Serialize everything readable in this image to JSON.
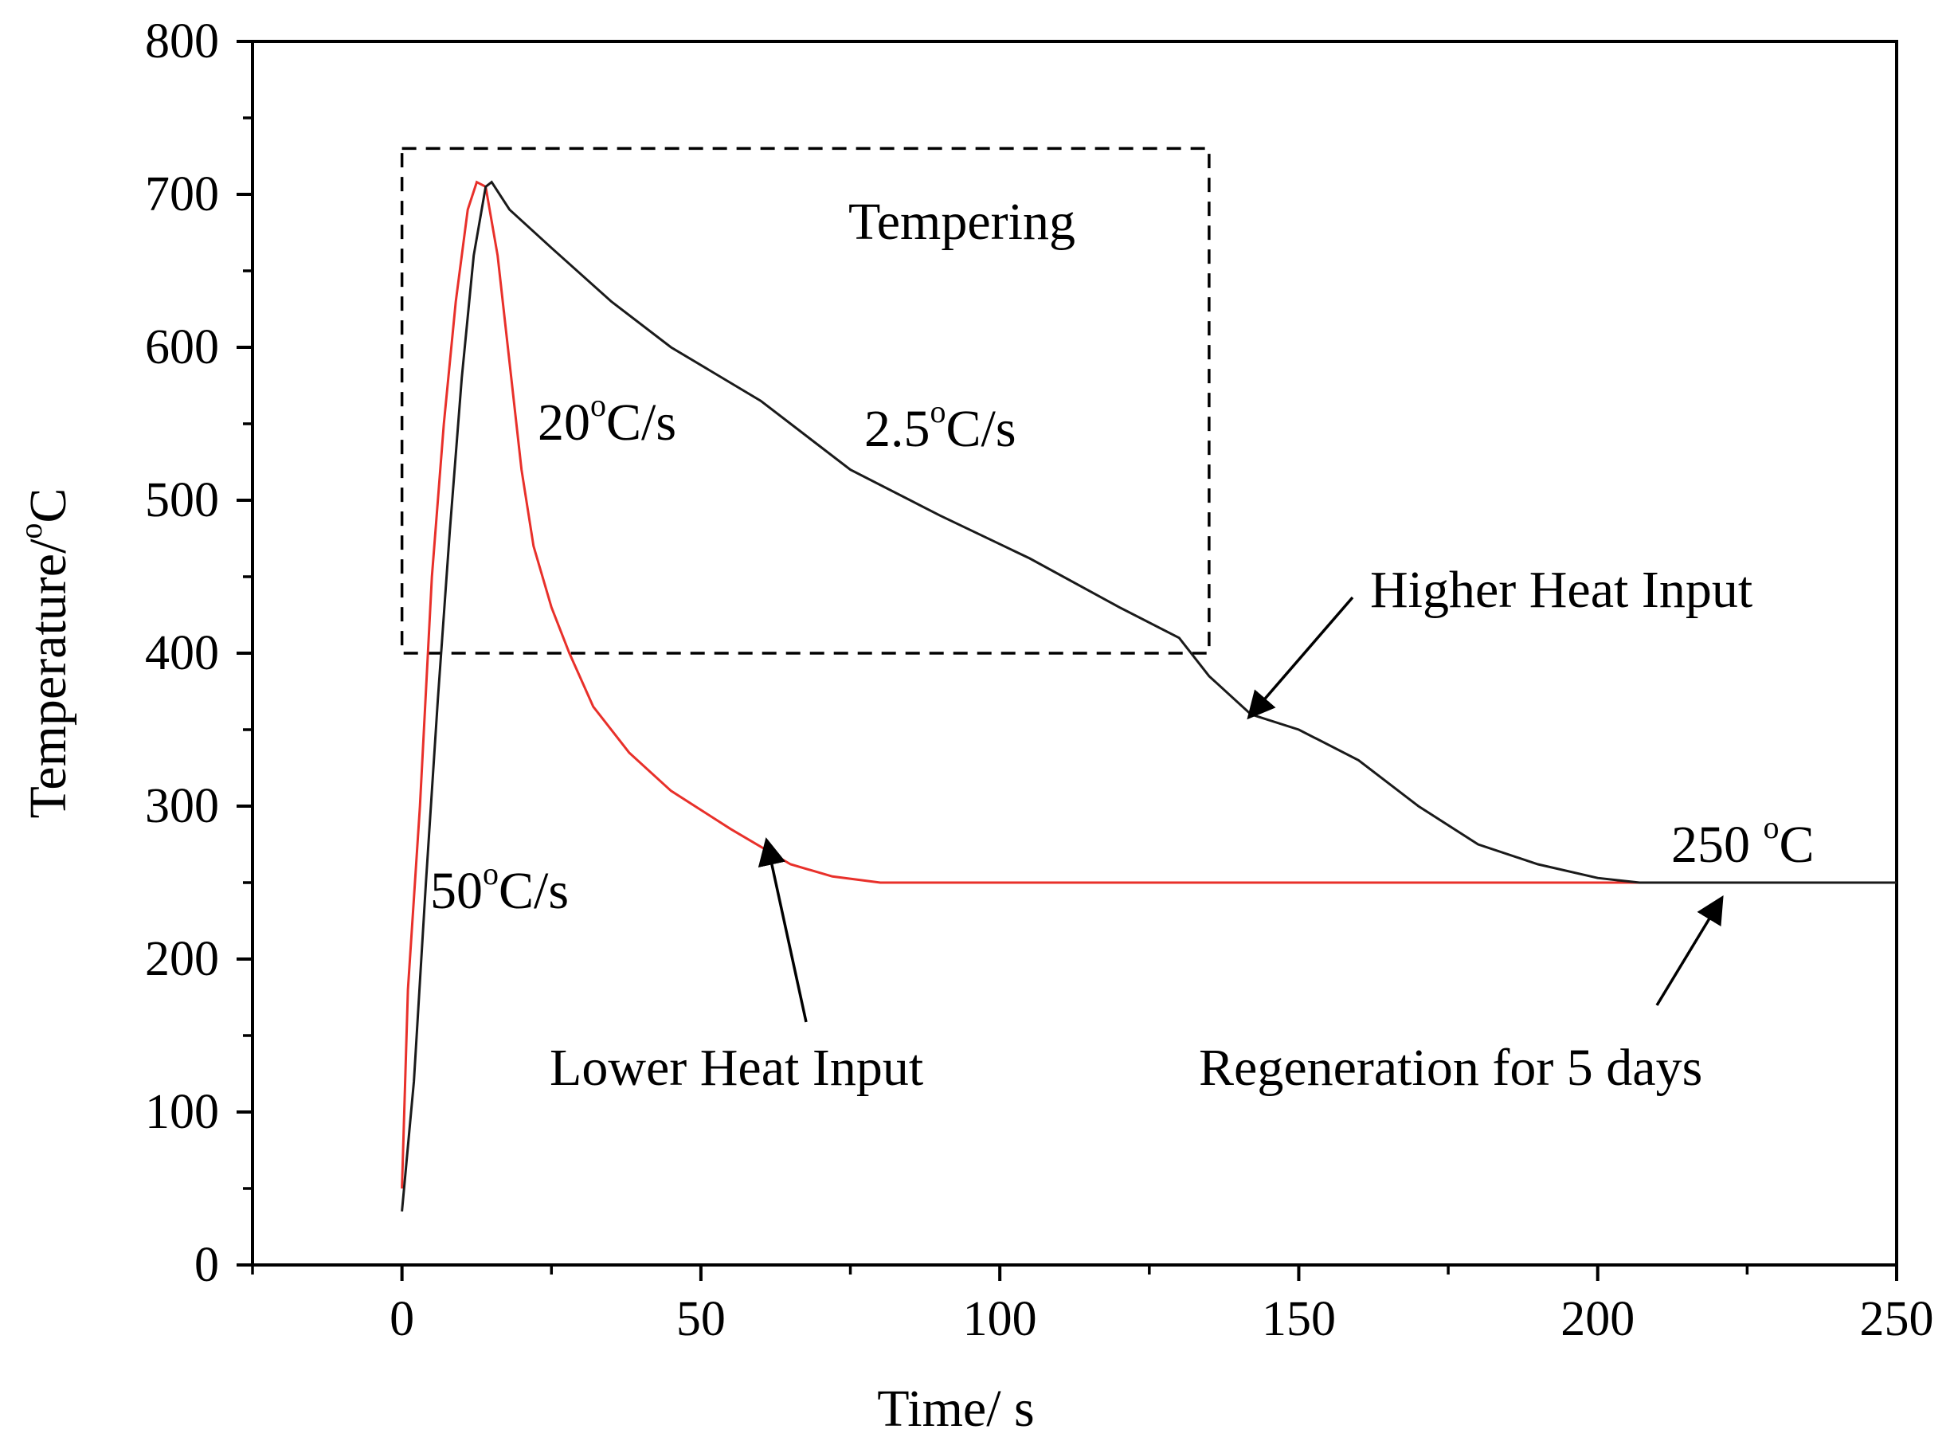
{
  "chart_data": {
    "type": "line",
    "xlabel_main": "Time/ s",
    "ylabel_main": "Temperature/",
    "ylabel_sup": "o",
    "ylabel_unit": "C",
    "xlim": [
      -25,
      250
    ],
    "ylim": [
      0,
      800
    ],
    "x_ticks": [
      0,
      50,
      100,
      150,
      200,
      250
    ],
    "y_ticks": [
      0,
      100,
      200,
      300,
      400,
      500,
      600,
      700,
      800
    ],
    "x_tick_labels": [
      "0",
      "50",
      "100",
      "150",
      "200",
      "250"
    ],
    "y_tick_labels": [
      "0",
      "100",
      "200",
      "300",
      "400",
      "500",
      "600",
      "700",
      "800"
    ],
    "grid": false,
    "series": [
      {
        "name": "Lower Heat Input",
        "color": "#e8302a",
        "points": [
          [
            0,
            50
          ],
          [
            1,
            180
          ],
          [
            3,
            300
          ],
          [
            5,
            450
          ],
          [
            7,
            550
          ],
          [
            9,
            630
          ],
          [
            11,
            690
          ],
          [
            12.5,
            708
          ],
          [
            14,
            705
          ],
          [
            16,
            660
          ],
          [
            18,
            590
          ],
          [
            20,
            520
          ],
          [
            22,
            470
          ],
          [
            25,
            430
          ],
          [
            28,
            400
          ],
          [
            32,
            365
          ],
          [
            38,
            335
          ],
          [
            45,
            310
          ],
          [
            55,
            285
          ],
          [
            65,
            262
          ],
          [
            72,
            254
          ],
          [
            80,
            250
          ],
          [
            120,
            250
          ],
          [
            200,
            250
          ],
          [
            250,
            250
          ]
        ]
      },
      {
        "name": "Higher Heat Input",
        "color": "#1a1a1a",
        "points": [
          [
            0,
            35
          ],
          [
            2,
            120
          ],
          [
            4,
            250
          ],
          [
            6,
            370
          ],
          [
            8,
            480
          ],
          [
            10,
            580
          ],
          [
            12,
            660
          ],
          [
            14,
            705
          ],
          [
            15,
            708
          ],
          [
            18,
            690
          ],
          [
            25,
            665
          ],
          [
            35,
            630
          ],
          [
            45,
            600
          ],
          [
            60,
            565
          ],
          [
            75,
            520
          ],
          [
            90,
            490
          ],
          [
            105,
            462
          ],
          [
            120,
            430
          ],
          [
            130,
            410
          ],
          [
            135,
            385
          ],
          [
            142,
            360
          ],
          [
            150,
            350
          ],
          [
            160,
            330
          ],
          [
            170,
            300
          ],
          [
            180,
            275
          ],
          [
            190,
            262
          ],
          [
            200,
            253
          ],
          [
            207,
            250
          ],
          [
            230,
            250
          ],
          [
            250,
            250
          ]
        ]
      }
    ],
    "tempering_box": {
      "x": [
        0,
        135
      ],
      "y": [
        400,
        730
      ]
    },
    "annotations": {
      "tempering": "Tempering",
      "rate_20_num": "20",
      "rate_20_unit": "C/s",
      "rate_25_num": "2.5",
      "rate_25_unit": "C/s",
      "rate_50_num": "50",
      "rate_50_unit": "C/s",
      "higher": "Higher Heat Input",
      "lower": "Lower Heat Input",
      "regen": "Regeneration for 5 days",
      "hold_num": "250 ",
      "hold_unit": "C",
      "degree_sup": "o"
    }
  }
}
